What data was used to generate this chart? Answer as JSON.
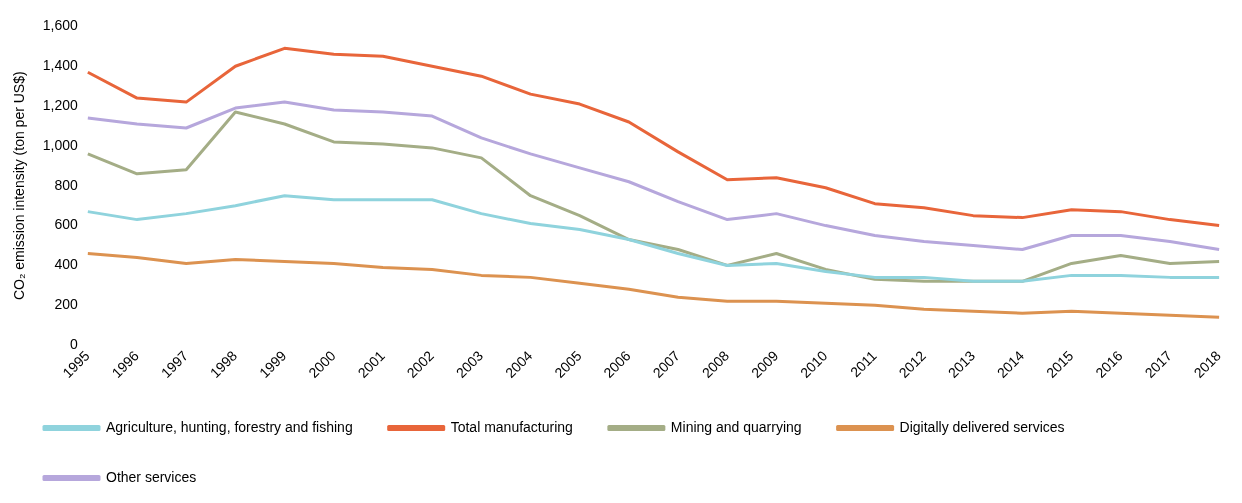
{
  "chart_data": {
    "type": "line",
    "ylabel": "CO₂ emission intensity (ton per US$)",
    "categories": [
      "1995",
      "1996",
      "1997",
      "1998",
      "1999",
      "2000",
      "2001",
      "2002",
      "2003",
      "2004",
      "2005",
      "2006",
      "2007",
      "2008",
      "2009",
      "2010",
      "2011",
      "2012",
      "2013",
      "2014",
      "2015",
      "2016",
      "2017",
      "2018"
    ],
    "ylim": [
      0,
      1600
    ],
    "yticks": [
      0,
      200,
      400,
      600,
      800,
      {
        "value": 1000,
        "label": "1,000"
      },
      {
        "value": 1200,
        "label": "1,200"
      },
      {
        "value": 1400,
        "label": "1,400"
      },
      {
        "value": 1600,
        "label": "1,600"
      }
    ],
    "grid": false,
    "legend": "bottom",
    "marker": "none",
    "line_style": "solid",
    "series": [
      {
        "name": "Agriculture, hunting, forestry and fishing",
        "color": "#8fd3dd",
        "values": [
          670,
          630,
          660,
          700,
          750,
          730,
          730,
          730,
          660,
          610,
          580,
          530,
          460,
          400,
          410,
          370,
          340,
          340,
          320,
          320,
          350,
          350,
          340,
          340
        ]
      },
      {
        "name": "Total manufacturing",
        "color": "#e8653a",
        "values": [
          1370,
          1240,
          1220,
          1400,
          1490,
          1460,
          1450,
          1400,
          1350,
          1260,
          1210,
          1120,
          970,
          830,
          840,
          790,
          710,
          690,
          650,
          640,
          680,
          670,
          630,
          600
        ]
      },
      {
        "name": "Mining and quarrying",
        "color": "#a4ad86",
        "values": [
          960,
          860,
          880,
          1170,
          1110,
          1020,
          1010,
          990,
          940,
          750,
          650,
          530,
          480,
          400,
          460,
          380,
          330,
          320,
          320,
          320,
          410,
          450,
          410,
          420
        ]
      },
      {
        "name": "Digitally delivered services",
        "color": "#dc9250",
        "values": [
          460,
          440,
          410,
          430,
          420,
          410,
          390,
          380,
          350,
          340,
          310,
          280,
          240,
          220,
          220,
          210,
          200,
          180,
          170,
          160,
          170,
          160,
          150,
          140
        ]
      },
      {
        "name": "Other services",
        "color": "#b6a7dc",
        "values": [
          1140,
          1110,
          1090,
          1190,
          1220,
          1180,
          1170,
          1150,
          1040,
          960,
          890,
          820,
          720,
          630,
          660,
          600,
          550,
          520,
          500,
          480,
          550,
          550,
          520,
          480
        ]
      }
    ]
  }
}
